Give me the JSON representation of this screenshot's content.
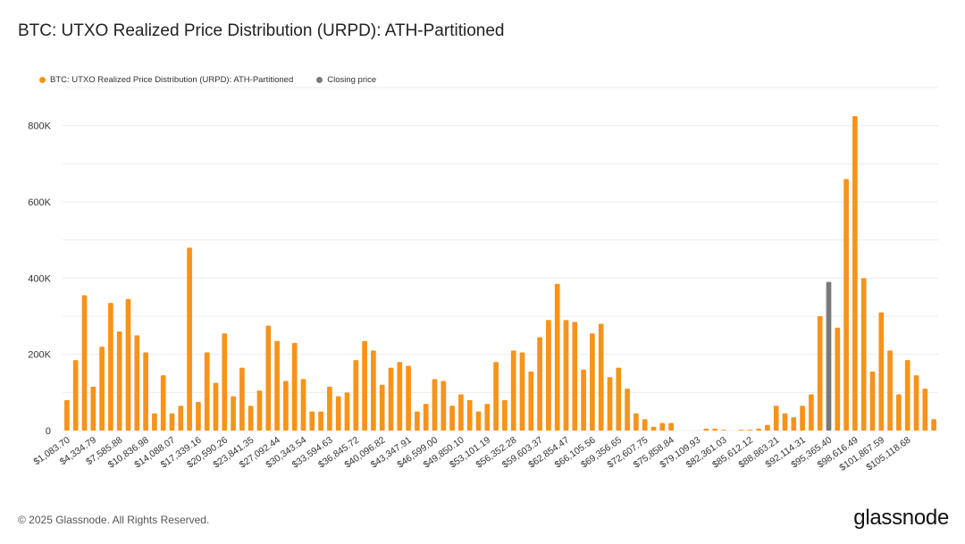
{
  "title": "BTC: UTXO Realized Price Distribution (URPD): ATH-Partitioned",
  "legend": {
    "urpd_label": "BTC: UTXO Realized Price Distribution (URPD): ATH-Partitioned",
    "closing_label": "Closing price"
  },
  "colors": {
    "bar": "#F7931A",
    "closing": "#7a7a7a",
    "grid": "#ececec",
    "text": "#333333"
  },
  "footer": "© 2025 Glassnode. All Rights Reserved.",
  "brand": "glassnode",
  "chart_data": {
    "type": "bar",
    "title": "BTC: UTXO Realized Price Distribution (URPD): ATH-Partitioned",
    "xlabel": "",
    "ylabel": "",
    "ylim": [
      0,
      900000
    ],
    "yticks": [
      0,
      200000,
      400000,
      600000,
      800000
    ],
    "ytick_labels": [
      "0",
      "200K",
      "400K",
      "600K",
      "800K"
    ],
    "xtick_labels": [
      "$1,083.70",
      "$4,334.79",
      "$7,585.88",
      "$10,836.98",
      "$14,088.07",
      "$17,339.16",
      "$20,590.26",
      "$23,841.35",
      "$27,092.44",
      "$30,343.54",
      "$33,594.63",
      "$36,845.72",
      "$40,096.82",
      "$43,347.91",
      "$46,599.00",
      "$49,850.10",
      "$53,101.19",
      "$56,352.28",
      "$59,603.37",
      "$62,854.47",
      "$66,105.56",
      "$69,356.65",
      "$72,607.75",
      "$75,858.84",
      "$79,109.93",
      "$82,361.03",
      "$85,612.12",
      "$88,863.21",
      "$92,114.31",
      "$95,365.40",
      "$98,616.49",
      "$101,867.59",
      "$105,118.68"
    ],
    "xtick_every": 3,
    "closing_price_index": 87,
    "series": [
      {
        "name": "BTC: UTXO Realized Price Distribution (URPD): ATH-Partitioned",
        "values": [
          80000,
          185000,
          355000,
          115000,
          220000,
          335000,
          260000,
          345000,
          250000,
          205000,
          45000,
          145000,
          45000,
          65000,
          480000,
          75000,
          205000,
          125000,
          255000,
          90000,
          165000,
          65000,
          105000,
          275000,
          235000,
          130000,
          230000,
          135000,
          50000,
          50000,
          115000,
          90000,
          100000,
          185000,
          235000,
          210000,
          120000,
          165000,
          180000,
          170000,
          50000,
          70000,
          135000,
          130000,
          65000,
          95000,
          80000,
          50000,
          70000,
          180000,
          80000,
          210000,
          205000,
          155000,
          245000,
          290000,
          385000,
          290000,
          285000,
          160000,
          255000,
          280000,
          140000,
          165000,
          110000,
          45000,
          30000,
          10000,
          20000,
          20000,
          0,
          0,
          0,
          5000,
          5000,
          2000,
          0,
          2000,
          2000,
          5000,
          15000,
          65000,
          45000,
          35000,
          65000,
          95000,
          300000,
          390000,
          270000,
          660000,
          825000,
          400000,
          155000,
          310000,
          210000,
          95000,
          185000,
          145000,
          110000,
          30000
        ]
      }
    ]
  }
}
